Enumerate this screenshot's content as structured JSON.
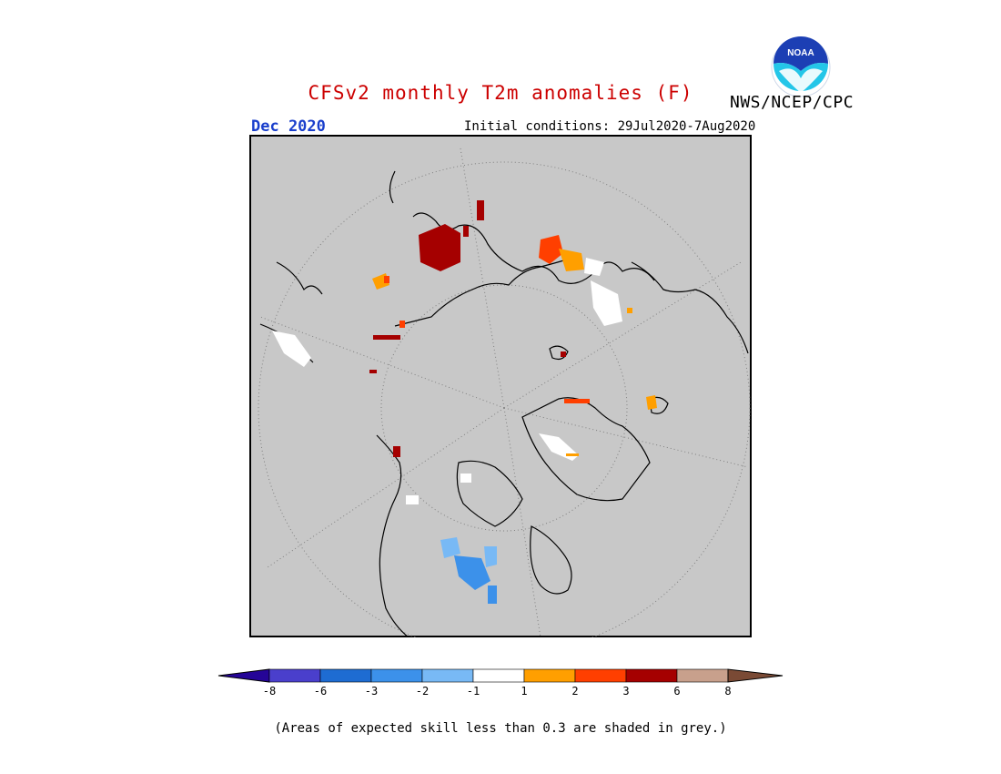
{
  "header": {
    "title": "CFSv2 monthly T2m anomalies (F)",
    "agency": "NWS/NCEP/CPC",
    "month": "Dec 2020",
    "initial_conditions": "Initial conditions: 29Jul2020-7Aug2020"
  },
  "colors": {
    "title": "#cc0000",
    "month": "#1a3fcc",
    "map_background": "#c8c8c8",
    "logo_blue": "#1c3fb4",
    "logo_cyan": "#24c6e8"
  },
  "logo": {
    "icon": "noaa-logo-icon",
    "text": "NOAA"
  },
  "legend": {
    "labels": [
      "-8",
      "-6",
      "-3",
      "-2",
      "-1",
      "1",
      "2",
      "3",
      "6",
      "8"
    ],
    "colors": [
      "#250597",
      "#4a3fcc",
      "#1e6cd2",
      "#3c91ea",
      "#78b9f5",
      "#ffffff",
      "#ff9f00",
      "#ff3f00",
      "#a50000",
      "#c8a08c",
      "#7a4a35"
    ]
  },
  "footnote": "(Areas of expected skill less than 0.3 are shaded in grey.)"
}
